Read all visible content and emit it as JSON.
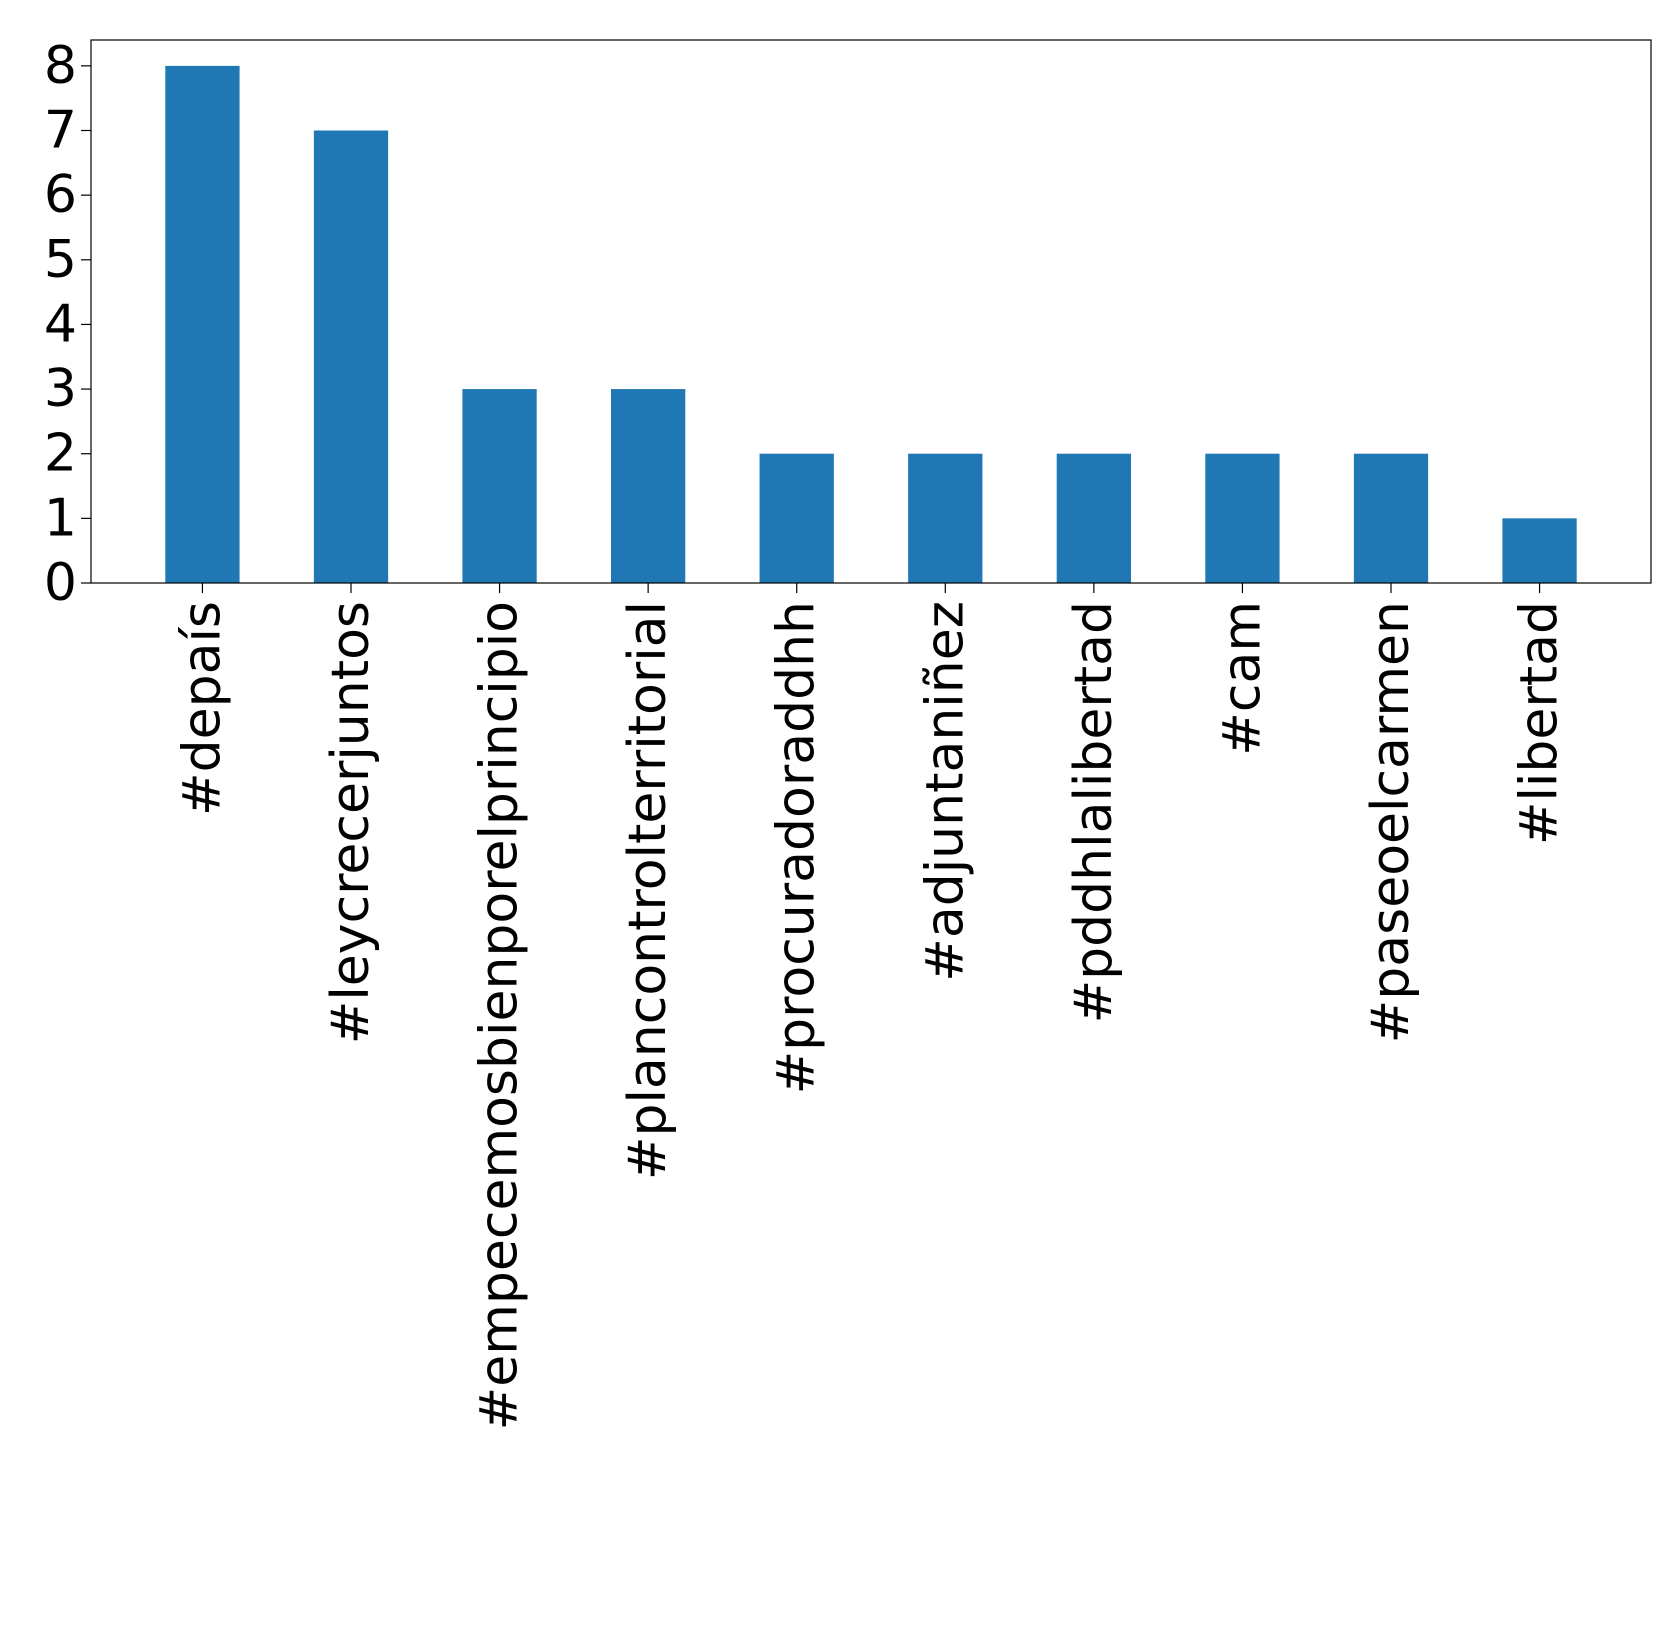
{
  "chart_data": {
    "type": "bar",
    "title": "",
    "xlabel": "",
    "ylabel": "",
    "categories": [
      "#depaís",
      "#leycrecerjuntos",
      "#empecemosbienporelprincipio",
      "#plancontrolterritorial",
      "#procuradoraddhh",
      "#adjuntaniñez",
      "#pddhlalibertad",
      "#cam",
      "#paseoelcarmen",
      "#libertad"
    ],
    "values": [
      8,
      7,
      3,
      3,
      2,
      2,
      2,
      2,
      2,
      1
    ],
    "ylim": [
      0,
      8.4
    ],
    "yticks": [
      0,
      1,
      2,
      3,
      4,
      5,
      6,
      7,
      8
    ],
    "grid": false,
    "legend": "none",
    "bar_color": "#1f77b4"
  }
}
